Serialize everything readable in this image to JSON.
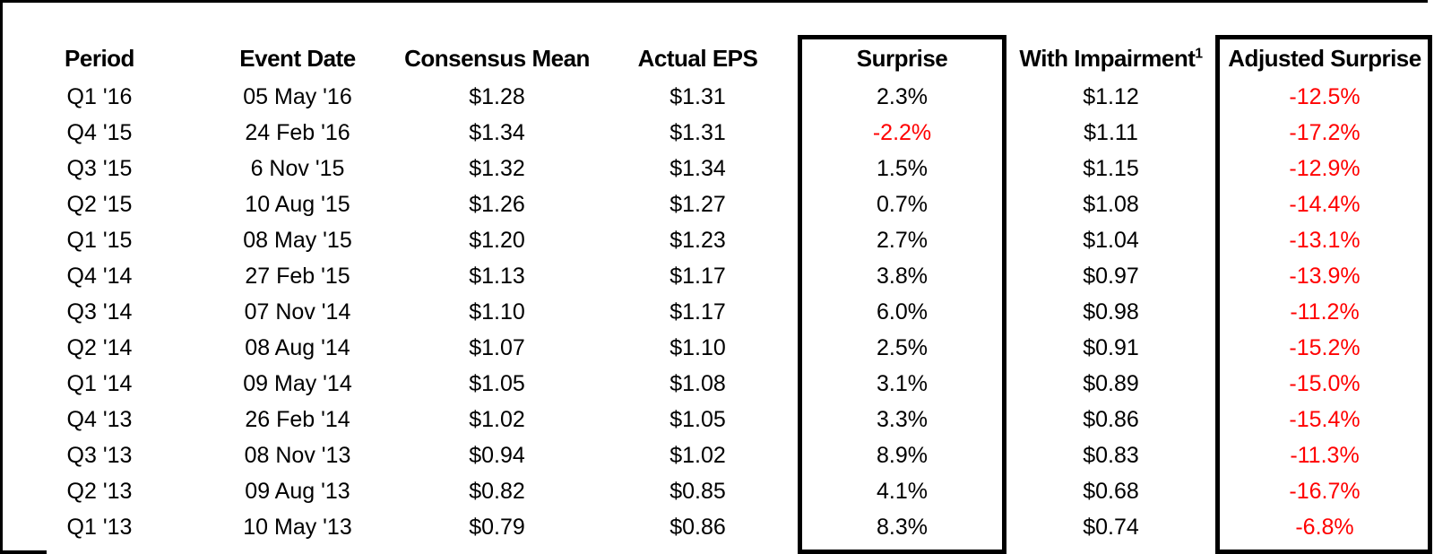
{
  "colors": {
    "negative_value_red": "#FF0000",
    "text_black": "#000000",
    "background": "#FFFFFF"
  },
  "chart_data": {
    "type": "table",
    "columns": [
      {
        "label": "Period"
      },
      {
        "label": "Event Date"
      },
      {
        "label": "Consensus Mean"
      },
      {
        "label": "Actual EPS"
      },
      {
        "label": "Surprise",
        "boxed": true
      },
      {
        "label": "With Impairment",
        "sup": "1"
      },
      {
        "label": "Adjusted Surprise",
        "boxed": true
      }
    ],
    "boxed_column_indexes": [
      4,
      6
    ],
    "negative_values_shown_in_red": true,
    "rows": [
      [
        "Q1 '16",
        "05 May '16",
        "$1.28",
        "$1.31",
        "2.3%",
        "$1.12",
        "-12.5%"
      ],
      [
        "Q4 '15",
        "24 Feb '16",
        "$1.34",
        "$1.31",
        "-2.2%",
        "$1.11",
        "-17.2%"
      ],
      [
        "Q3 '15",
        "6 Nov '15",
        "$1.32",
        "$1.34",
        "1.5%",
        "$1.15",
        "-12.9%"
      ],
      [
        "Q2 '15",
        "10 Aug '15",
        "$1.26",
        "$1.27",
        "0.7%",
        "$1.08",
        "-14.4%"
      ],
      [
        "Q1 '15",
        "08 May '15",
        "$1.20",
        "$1.23",
        "2.7%",
        "$1.04",
        "-13.1%"
      ],
      [
        "Q4 '14",
        "27 Feb '15",
        "$1.13",
        "$1.17",
        "3.8%",
        "$0.97",
        "-13.9%"
      ],
      [
        "Q3 '14",
        "07 Nov '14",
        "$1.10",
        "$1.17",
        "6.0%",
        "$0.98",
        "-11.2%"
      ],
      [
        "Q2 '14",
        "08 Aug '14",
        "$1.07",
        "$1.10",
        "2.5%",
        "$0.91",
        "-15.2%"
      ],
      [
        "Q1 '14",
        "09 May '14",
        "$1.05",
        "$1.08",
        "3.1%",
        "$0.89",
        "-15.0%"
      ],
      [
        "Q4 '13",
        "26 Feb '14",
        "$1.02",
        "$1.05",
        "3.3%",
        "$0.86",
        "-15.4%"
      ],
      [
        "Q3 '13",
        "08 Nov '13",
        "$0.94",
        "$1.02",
        "8.9%",
        "$0.83",
        "-11.3%"
      ],
      [
        "Q2 '13",
        "09 Aug '13",
        "$0.82",
        "$0.85",
        "4.1%",
        "$0.68",
        "-16.7%"
      ],
      [
        "Q1 '13",
        "10 May '13",
        "$0.79",
        "$0.86",
        "8.3%",
        "$0.74",
        "-6.8%"
      ]
    ]
  }
}
